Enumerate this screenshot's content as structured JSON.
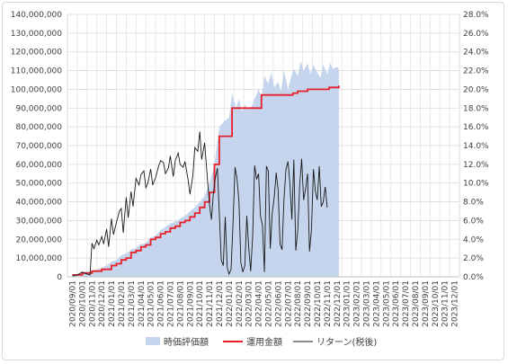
{
  "chart_data": {
    "type": "line",
    "title": "",
    "xlabel": "",
    "ylabel": "",
    "legend_position": "bottom",
    "grid": {
      "horizontal": true,
      "vertical": true
    },
    "y_left": {
      "min": 0,
      "max": 140000000,
      "step": 10000000,
      "tick_labels": [
        "0",
        "10,000,000",
        "20,000,000",
        "30,000,000",
        "40,000,000",
        "50,000,000",
        "60,000,000",
        "70,000,000",
        "80,000,000",
        "90,000,000",
        "100,000,000",
        "110,000,000",
        "120,000,000",
        "130,000,000",
        "140,000,000"
      ]
    },
    "y_right": {
      "min": 0,
      "max": 28,
      "step": 2,
      "tick_labels": [
        "0.0%",
        "2.0%",
        "4.0%",
        "6.0%",
        "8.0%",
        "10.0%",
        "12.0%",
        "14.0%",
        "16.0%",
        "18.0%",
        "20.0%",
        "22.0%",
        "24.0%",
        "26.0%",
        "28.0%"
      ]
    },
    "x_tick_labels": [
      "2020/09/01",
      "2020/10/01",
      "2020/11/01",
      "2020/12/01",
      "2021/01/01",
      "2021/02/01",
      "2021/03/01",
      "2021/04/01",
      "2021/05/01",
      "2021/06/01",
      "2021/07/01",
      "2021/08/01",
      "2021/09/01",
      "2021/10/01",
      "2021/11/01",
      "2021/12/01",
      "2022/01/01",
      "2022/02/01",
      "2022/03/01",
      "2022/04/01",
      "2022/05/01",
      "2022/06/01",
      "2022/07/01",
      "2022/08/01",
      "2022/09/01",
      "2022/10/01",
      "2022/11/01",
      "2022/12/01",
      "2023/01/01",
      "2023/02/01",
      "2023/03/01",
      "2023/04/01",
      "2023/05/01",
      "2023/06/01",
      "2023/07/01",
      "2023/08/01",
      "2023/09/01",
      "2023/10/01",
      "2023/11/01",
      "2023/12/01"
    ],
    "series": [
      {
        "name": "時価評価額",
        "type": "area",
        "axis": "left",
        "color": "#c5d5ee",
        "points": [
          [
            0,
            1000000
          ],
          [
            0.5,
            1100000
          ],
          [
            1,
            2500000
          ],
          [
            1.5,
            2800000
          ],
          [
            2,
            3200000
          ],
          [
            2.5,
            4000000
          ],
          [
            3,
            5000000
          ],
          [
            3.5,
            6000000
          ],
          [
            4,
            8000000
          ],
          [
            4.5,
            9000000
          ],
          [
            5,
            11500000
          ],
          [
            5.5,
            12500000
          ],
          [
            6,
            14500000
          ],
          [
            6.5,
            15500000
          ],
          [
            7,
            17500000
          ],
          [
            7.5,
            18000000
          ],
          [
            8,
            21000000
          ],
          [
            8.5,
            22000000
          ],
          [
            9,
            25000000
          ],
          [
            9.5,
            26500000
          ],
          [
            10,
            28500000
          ],
          [
            10.5,
            29500000
          ],
          [
            11,
            31000000
          ],
          [
            11.5,
            32500000
          ],
          [
            12,
            35000000
          ],
          [
            12.5,
            37000000
          ],
          [
            13,
            40000000
          ],
          [
            13.5,
            43000000
          ],
          [
            14,
            50000000
          ],
          [
            14.5,
            60000000
          ],
          [
            15,
            80000000
          ],
          [
            15.5,
            83000000
          ],
          [
            16,
            85000000
          ],
          [
            16.3,
            98000000
          ],
          [
            16.7,
            90000000
          ],
          [
            17,
            95000000
          ],
          [
            17.3,
            88000000
          ],
          [
            17.6,
            92000000
          ],
          [
            18,
            89000000
          ],
          [
            18.3,
            91000000
          ],
          [
            18.6,
            95000000
          ],
          [
            19,
            100000000
          ],
          [
            19.3,
            96000000
          ],
          [
            19.6,
            107000000
          ],
          [
            20,
            103000000
          ],
          [
            20.3,
            109000000
          ],
          [
            20.6,
            101000000
          ],
          [
            21,
            104000000
          ],
          [
            21.3,
            99000000
          ],
          [
            21.6,
            110000000
          ],
          [
            22,
            100000000
          ],
          [
            22.3,
            106000000
          ],
          [
            22.6,
            111000000
          ],
          [
            23,
            107000000
          ],
          [
            23.3,
            115000000
          ],
          [
            23.6,
            110000000
          ],
          [
            24,
            114000000
          ],
          [
            24.3,
            108000000
          ],
          [
            24.6,
            113000000
          ],
          [
            25,
            109000000
          ],
          [
            25.3,
            106000000
          ],
          [
            25.6,
            113000000
          ],
          [
            26,
            108000000
          ],
          [
            26.3,
            114000000
          ],
          [
            26.6,
            111000000
          ],
          [
            27,
            112000000
          ],
          [
            27.2,
            111000000
          ]
        ]
      },
      {
        "name": "運用金額",
        "type": "step",
        "axis": "left",
        "color": "#e8202a",
        "points": [
          [
            0,
            1000000
          ],
          [
            1,
            2000000
          ],
          [
            2,
            3000000
          ],
          [
            3,
            4000000
          ],
          [
            4,
            6000000
          ],
          [
            4.5,
            7000000
          ],
          [
            5,
            9000000
          ],
          [
            5.5,
            10000000
          ],
          [
            6,
            13000000
          ],
          [
            6.5,
            14000000
          ],
          [
            7,
            16000000
          ],
          [
            7.5,
            17000000
          ],
          [
            8,
            20000000
          ],
          [
            8.5,
            21000000
          ],
          [
            9,
            23000000
          ],
          [
            9.5,
            24000000
          ],
          [
            10,
            26000000
          ],
          [
            10.5,
            27000000
          ],
          [
            11,
            29000000
          ],
          [
            11.5,
            30000000
          ],
          [
            12,
            32000000
          ],
          [
            12.5,
            34000000
          ],
          [
            13,
            37000000
          ],
          [
            13.5,
            40000000
          ],
          [
            14,
            45000000
          ],
          [
            14.5,
            60000000
          ],
          [
            15,
            75000000
          ],
          [
            16,
            75000000
          ],
          [
            16.3,
            90000000
          ],
          [
            19,
            90000000
          ],
          [
            19.3,
            97000000
          ],
          [
            22,
            97000000
          ],
          [
            22.5,
            98000000
          ],
          [
            23,
            99000000
          ],
          [
            24,
            100000000
          ],
          [
            26,
            100000000
          ],
          [
            26.2,
            101000000
          ],
          [
            27,
            101000000
          ],
          [
            27.2,
            102000000
          ]
        ]
      },
      {
        "name": "リターン(税後)",
        "type": "line",
        "axis": "right",
        "color": "#1a1a1a",
        "points": [
          [
            0,
            0.1
          ],
          [
            0.5,
            0.2
          ],
          [
            1,
            0.5
          ],
          [
            1.5,
            0.3
          ],
          [
            1.8,
            0.2
          ],
          [
            2,
            3.6
          ],
          [
            2.2,
            3.0
          ],
          [
            2.5,
            3.9
          ],
          [
            2.7,
            3.4
          ],
          [
            3,
            4.3
          ],
          [
            3.2,
            3.5
          ],
          [
            3.5,
            5.1
          ],
          [
            3.7,
            3.2
          ],
          [
            4,
            6.2
          ],
          [
            4.2,
            4.5
          ],
          [
            4.5,
            5.8
          ],
          [
            4.8,
            7.0
          ],
          [
            5,
            7.3
          ],
          [
            5.2,
            4.7
          ],
          [
            5.5,
            8.5
          ],
          [
            5.7,
            6.3
          ],
          [
            6,
            9.1
          ],
          [
            6.2,
            7.5
          ],
          [
            6.5,
            10.5
          ],
          [
            6.8,
            9.8
          ],
          [
            7,
            10.9
          ],
          [
            7.3,
            11.3
          ],
          [
            7.5,
            9.5
          ],
          [
            7.7,
            10.0
          ],
          [
            8,
            11.5
          ],
          [
            8.2,
            9.8
          ],
          [
            8.5,
            10.6
          ],
          [
            8.8,
            11.8
          ],
          [
            9,
            12.4
          ],
          [
            9.3,
            12.2
          ],
          [
            9.5,
            11.0
          ],
          [
            9.8,
            11.6
          ],
          [
            10,
            12.9
          ],
          [
            10.3,
            10.7
          ],
          [
            10.5,
            12.4
          ],
          [
            10.8,
            13.2
          ],
          [
            11,
            12.0
          ],
          [
            11.3,
            11.7
          ],
          [
            11.5,
            12.3
          ],
          [
            11.8,
            10.4
          ],
          [
            12,
            8.8
          ],
          [
            12.3,
            10.8
          ],
          [
            12.5,
            13.8
          ],
          [
            12.8,
            13.4
          ],
          [
            13,
            15.5
          ],
          [
            13.2,
            12.5
          ],
          [
            13.5,
            14.3
          ],
          [
            13.8,
            10.2
          ],
          [
            14,
            7.7
          ],
          [
            14.2,
            6.1
          ],
          [
            14.4,
            9.0
          ],
          [
            14.6,
            10.6
          ],
          [
            14.8,
            11.6
          ],
          [
            15,
            6.8
          ],
          [
            15.2,
            1.8
          ],
          [
            15.4,
            1.2
          ],
          [
            15.6,
            6.4
          ],
          [
            15.8,
            1.0
          ],
          [
            16,
            0.3
          ],
          [
            16.2,
            0.8
          ],
          [
            16.4,
            5.8
          ],
          [
            16.6,
            11.7
          ],
          [
            16.8,
            10.5
          ],
          [
            17,
            8.0
          ],
          [
            17.2,
            1.5
          ],
          [
            17.4,
            0.5
          ],
          [
            17.6,
            1.2
          ],
          [
            17.8,
            6.5
          ],
          [
            18,
            3.0
          ],
          [
            18.2,
            0.6
          ],
          [
            18.4,
            4.3
          ],
          [
            18.6,
            11.9
          ],
          [
            18.8,
            10.4
          ],
          [
            19,
            11.0
          ],
          [
            19.2,
            6.5
          ],
          [
            19.4,
            5.5
          ],
          [
            19.6,
            0.5
          ],
          [
            19.8,
            11.8
          ],
          [
            20,
            11.3
          ],
          [
            20.2,
            3.0
          ],
          [
            20.4,
            6.8
          ],
          [
            20.6,
            8.5
          ],
          [
            20.8,
            11.1
          ],
          [
            21,
            9.3
          ],
          [
            21.2,
            3.5
          ],
          [
            21.4,
            2.9
          ],
          [
            21.6,
            8.4
          ],
          [
            21.8,
            11.5
          ],
          [
            22,
            12.3
          ],
          [
            22.2,
            10.0
          ],
          [
            22.4,
            6.1
          ],
          [
            22.6,
            12.5
          ],
          [
            22.8,
            2.8
          ],
          [
            23,
            5.0
          ],
          [
            23.2,
            9.7
          ],
          [
            23.4,
            12.6
          ],
          [
            23.6,
            8.2
          ],
          [
            23.8,
            9.4
          ],
          [
            24,
            11.0
          ],
          [
            24.2,
            2.7
          ],
          [
            24.4,
            5.0
          ],
          [
            24.6,
            11.5
          ],
          [
            24.8,
            9.1
          ],
          [
            25,
            8.2
          ],
          [
            25.2,
            11.8
          ],
          [
            25.4,
            7.5
          ],
          [
            25.6,
            8.0
          ],
          [
            25.8,
            9.6
          ],
          [
            26,
            7.4
          ]
        ]
      }
    ]
  }
}
